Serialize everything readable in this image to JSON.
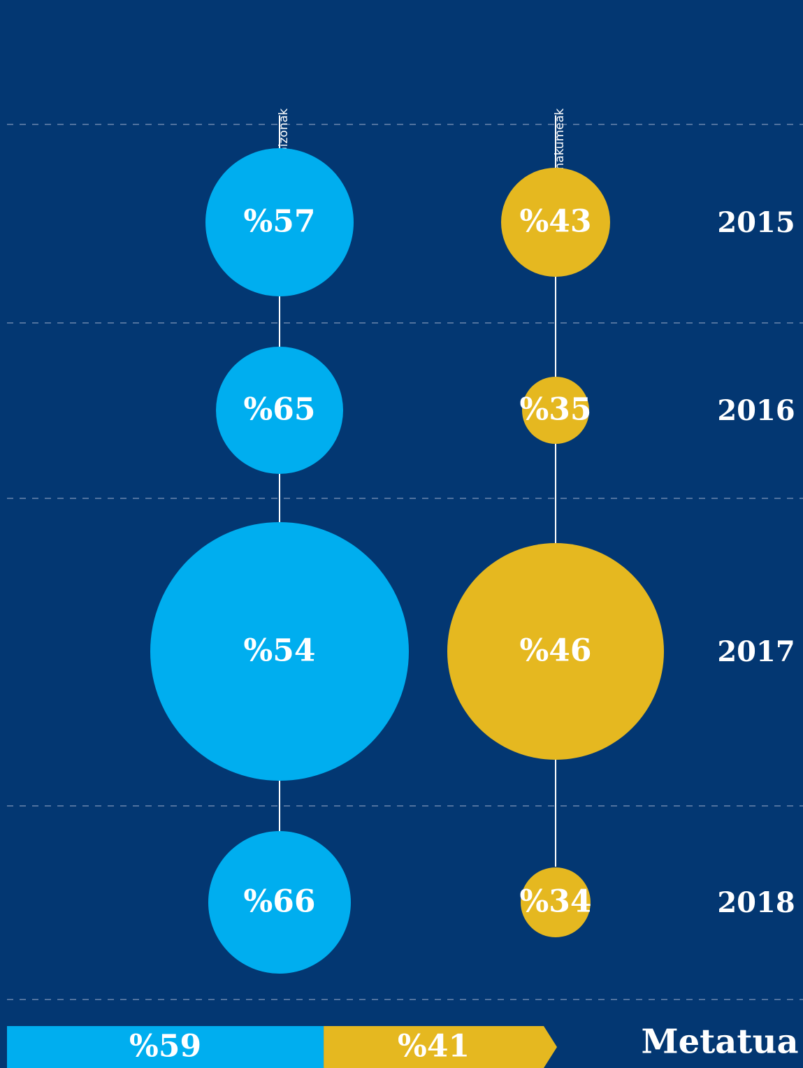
{
  "chart_data": {
    "type": "bubble",
    "categories": [
      "2015",
      "2016",
      "2017",
      "2018"
    ],
    "series": [
      {
        "name": "Gizonak",
        "color": "#00aeef",
        "values": [
          57,
          65,
          54,
          66
        ],
        "value_labels": [
          "%57",
          "%65",
          "%54",
          "%66"
        ]
      },
      {
        "name": "Emakumeak",
        "color": "#e5b820",
        "values": [
          43,
          35,
          46,
          34
        ],
        "value_labels": [
          "%43",
          "%35",
          "%46",
          "%34"
        ]
      }
    ],
    "total": {
      "label": "Metatua",
      "values": [
        59,
        41
      ],
      "value_labels": [
        "%59",
        "%41"
      ]
    }
  }
}
